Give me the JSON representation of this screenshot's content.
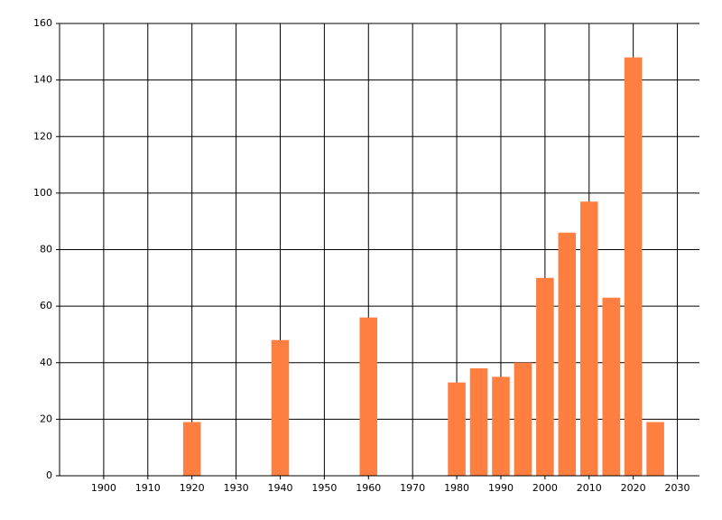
{
  "chart_data": {
    "type": "bar",
    "x": [
      1920,
      1940,
      1960,
      1980,
      1985,
      1990,
      1995,
      2000,
      2005,
      2010,
      2015,
      2020,
      2025
    ],
    "values": [
      19,
      48,
      56,
      33,
      38,
      35,
      40,
      70,
      86,
      97,
      63,
      148,
      19
    ],
    "color": "#ff7f40",
    "xlim": [
      1890,
      2035
    ],
    "xticks": [
      1900,
      1910,
      1920,
      1930,
      1940,
      1950,
      1960,
      1970,
      1980,
      1990,
      2000,
      2010,
      2020,
      2030
    ],
    "ylim": [
      0,
      160
    ],
    "yticks": [
      0,
      20,
      40,
      60,
      80,
      100,
      120,
      140,
      160
    ],
    "grid": true
  }
}
